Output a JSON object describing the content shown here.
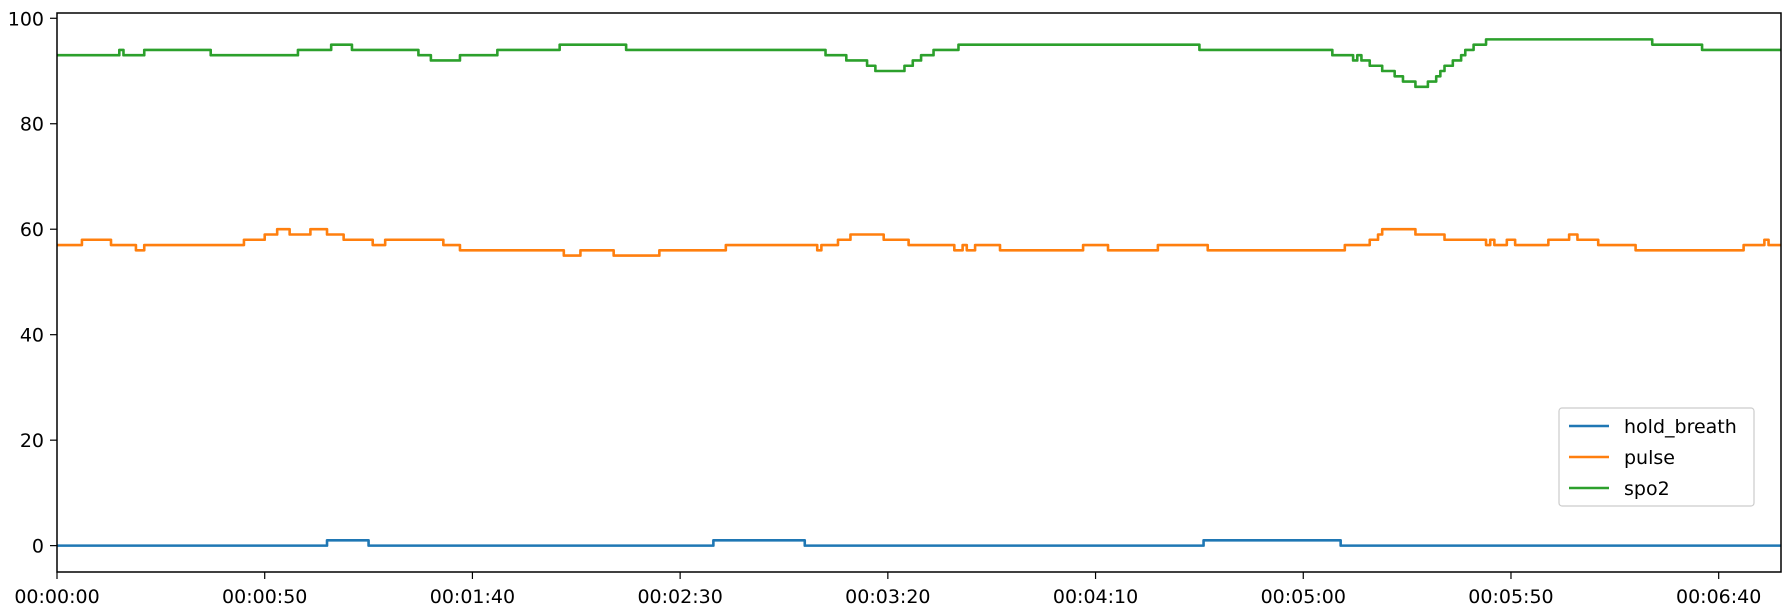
{
  "chart_data": {
    "type": "line",
    "title": "",
    "xlabel": "",
    "ylabel": "",
    "x_unit": "seconds",
    "xlim": [
      0,
      415
    ],
    "ylim": [
      -5,
      101
    ],
    "grid": false,
    "legend_position": "lower-right",
    "x_ticks": [
      {
        "value": 0,
        "label": "00:00:00"
      },
      {
        "value": 50,
        "label": "00:00:50"
      },
      {
        "value": 100,
        "label": "00:01:40"
      },
      {
        "value": 150,
        "label": "00:02:30"
      },
      {
        "value": 200,
        "label": "00:03:20"
      },
      {
        "value": 250,
        "label": "00:04:10"
      },
      {
        "value": 300,
        "label": "00:05:00"
      },
      {
        "value": 350,
        "label": "00:05:50"
      },
      {
        "value": 400,
        "label": "00:06:40"
      }
    ],
    "y_ticks": [
      {
        "value": 0,
        "label": "0"
      },
      {
        "value": 20,
        "label": "20"
      },
      {
        "value": 40,
        "label": "40"
      },
      {
        "value": 60,
        "label": "60"
      },
      {
        "value": 80,
        "label": "80"
      },
      {
        "value": 100,
        "label": "100"
      }
    ],
    "series": [
      {
        "name": "hold_breath",
        "color": "#1f77b4",
        "points": [
          [
            0,
            0
          ],
          [
            65,
            0
          ],
          [
            65,
            1
          ],
          [
            75,
            1
          ],
          [
            75,
            0
          ],
          [
            158,
            0
          ],
          [
            158,
            1
          ],
          [
            180,
            1
          ],
          [
            180,
            0
          ],
          [
            276,
            0
          ],
          [
            276,
            1
          ],
          [
            309,
            1
          ],
          [
            309,
            0
          ],
          [
            415,
            0
          ]
        ]
      },
      {
        "name": "pulse",
        "color": "#ff7f0e",
        "points": [
          [
            0,
            57
          ],
          [
            6,
            57
          ],
          [
            6,
            58
          ],
          [
            13,
            58
          ],
          [
            13,
            57
          ],
          [
            19,
            57
          ],
          [
            19,
            56
          ],
          [
            21,
            56
          ],
          [
            21,
            57
          ],
          [
            45,
            57
          ],
          [
            45,
            58
          ],
          [
            50,
            58
          ],
          [
            50,
            59
          ],
          [
            53,
            59
          ],
          [
            53,
            60
          ],
          [
            56,
            60
          ],
          [
            56,
            59
          ],
          [
            61,
            59
          ],
          [
            61,
            60
          ],
          [
            65,
            60
          ],
          [
            65,
            59
          ],
          [
            69,
            59
          ],
          [
            69,
            58
          ],
          [
            76,
            58
          ],
          [
            76,
            57
          ],
          [
            79,
            57
          ],
          [
            79,
            58
          ],
          [
            93,
            58
          ],
          [
            93,
            57
          ],
          [
            97,
            57
          ],
          [
            97,
            56
          ],
          [
            122,
            56
          ],
          [
            122,
            55
          ],
          [
            126,
            55
          ],
          [
            126,
            56
          ],
          [
            134,
            56
          ],
          [
            134,
            55
          ],
          [
            145,
            55
          ],
          [
            145,
            56
          ],
          [
            161,
            56
          ],
          [
            161,
            57
          ],
          [
            183,
            57
          ],
          [
            183,
            56
          ],
          [
            184,
            56
          ],
          [
            184,
            57
          ],
          [
            188,
            57
          ],
          [
            188,
            58
          ],
          [
            191,
            58
          ],
          [
            191,
            59
          ],
          [
            199,
            59
          ],
          [
            199,
            58
          ],
          [
            205,
            58
          ],
          [
            205,
            57
          ],
          [
            216,
            57
          ],
          [
            216,
            56
          ],
          [
            218,
            56
          ],
          [
            218,
            57
          ],
          [
            219,
            57
          ],
          [
            219,
            56
          ],
          [
            221,
            56
          ],
          [
            221,
            57
          ],
          [
            227,
            57
          ],
          [
            227,
            56
          ],
          [
            247,
            56
          ],
          [
            247,
            57
          ],
          [
            253,
            57
          ],
          [
            253,
            56
          ],
          [
            265,
            56
          ],
          [
            265,
            57
          ],
          [
            277,
            57
          ],
          [
            277,
            56
          ],
          [
            310,
            56
          ],
          [
            310,
            57
          ],
          [
            316,
            57
          ],
          [
            316,
            58
          ],
          [
            318,
            58
          ],
          [
            318,
            59
          ],
          [
            319,
            59
          ],
          [
            319,
            60
          ],
          [
            327,
            60
          ],
          [
            327,
            59
          ],
          [
            334,
            59
          ],
          [
            334,
            58
          ],
          [
            344,
            58
          ],
          [
            344,
            57
          ],
          [
            345,
            57
          ],
          [
            345,
            58
          ],
          [
            346,
            58
          ],
          [
            346,
            57
          ],
          [
            349,
            57
          ],
          [
            349,
            58
          ],
          [
            351,
            58
          ],
          [
            351,
            57
          ],
          [
            359,
            57
          ],
          [
            359,
            58
          ],
          [
            364,
            58
          ],
          [
            364,
            59
          ],
          [
            366,
            59
          ],
          [
            366,
            58
          ],
          [
            371,
            58
          ],
          [
            371,
            57
          ],
          [
            380,
            57
          ],
          [
            380,
            56
          ],
          [
            406,
            56
          ],
          [
            406,
            57
          ],
          [
            411,
            57
          ],
          [
            411,
            58
          ],
          [
            412,
            58
          ],
          [
            412,
            57
          ],
          [
            415,
            57
          ]
        ]
      },
      {
        "name": "spo2",
        "color": "#2ca02c",
        "points": [
          [
            0,
            93
          ],
          [
            15,
            93
          ],
          [
            15,
            94
          ],
          [
            16,
            94
          ],
          [
            16,
            93
          ],
          [
            21,
            93
          ],
          [
            21,
            94
          ],
          [
            37,
            94
          ],
          [
            37,
            93
          ],
          [
            58,
            93
          ],
          [
            58,
            94
          ],
          [
            66,
            94
          ],
          [
            66,
            95
          ],
          [
            71,
            95
          ],
          [
            71,
            94
          ],
          [
            87,
            94
          ],
          [
            87,
            93
          ],
          [
            90,
            93
          ],
          [
            90,
            92
          ],
          [
            97,
            92
          ],
          [
            97,
            93
          ],
          [
            106,
            93
          ],
          [
            106,
            94
          ],
          [
            121,
            94
          ],
          [
            121,
            95
          ],
          [
            137,
            95
          ],
          [
            137,
            94
          ],
          [
            185,
            94
          ],
          [
            185,
            93
          ],
          [
            190,
            93
          ],
          [
            190,
            92
          ],
          [
            195,
            92
          ],
          [
            195,
            91
          ],
          [
            197,
            91
          ],
          [
            197,
            90
          ],
          [
            204,
            90
          ],
          [
            204,
            91
          ],
          [
            206,
            91
          ],
          [
            206,
            92
          ],
          [
            208,
            92
          ],
          [
            208,
            93
          ],
          [
            211,
            93
          ],
          [
            211,
            94
          ],
          [
            217,
            94
          ],
          [
            217,
            95
          ],
          [
            275,
            95
          ],
          [
            275,
            94
          ],
          [
            307,
            94
          ],
          [
            307,
            93
          ],
          [
            312,
            93
          ],
          [
            312,
            92
          ],
          [
            313,
            92
          ],
          [
            313,
            93
          ],
          [
            314,
            93
          ],
          [
            314,
            92
          ],
          [
            316,
            92
          ],
          [
            316,
            91
          ],
          [
            319,
            91
          ],
          [
            319,
            90
          ],
          [
            322,
            90
          ],
          [
            322,
            89
          ],
          [
            324,
            89
          ],
          [
            324,
            88
          ],
          [
            327,
            88
          ],
          [
            327,
            87
          ],
          [
            330,
            87
          ],
          [
            330,
            88
          ],
          [
            332,
            88
          ],
          [
            332,
            89
          ],
          [
            333,
            89
          ],
          [
            333,
            90
          ],
          [
            334,
            90
          ],
          [
            334,
            91
          ],
          [
            336,
            91
          ],
          [
            336,
            92
          ],
          [
            338,
            92
          ],
          [
            338,
            93
          ],
          [
            339,
            93
          ],
          [
            339,
            94
          ],
          [
            341,
            94
          ],
          [
            341,
            95
          ],
          [
            344,
            95
          ],
          [
            344,
            96
          ],
          [
            384,
            96
          ],
          [
            384,
            95
          ],
          [
            396,
            95
          ],
          [
            396,
            94
          ],
          [
            415,
            94
          ]
        ]
      }
    ]
  }
}
